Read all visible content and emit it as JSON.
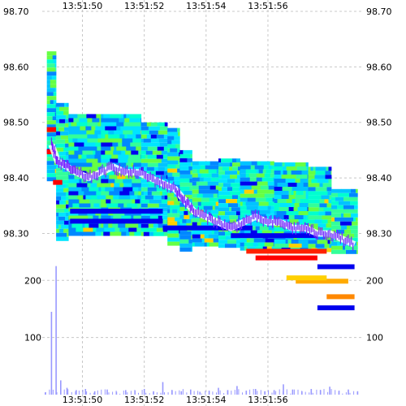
{
  "chart_data": {
    "type": "heatmap",
    "title": "",
    "xlabel": "",
    "ylabel": "",
    "grid": true,
    "x_ticks": [
      "13:51:50",
      "13:51:52",
      "13:51:54",
      "13:51:56"
    ],
    "x_tick_seconds": [
      50,
      52,
      54,
      56
    ],
    "x_range_seconds": [
      48.7,
      59.1
    ],
    "price_ticks": [
      "98.70",
      "98.60",
      "98.50",
      "98.40",
      "98.30"
    ],
    "price_tick_values": [
      98.7,
      98.6,
      98.5,
      98.4,
      98.3
    ],
    "price_range": [
      98.27,
      98.7
    ],
    "volume_ticks": [
      "200",
      "100"
    ],
    "volume_tick_values": [
      200,
      100
    ],
    "volume_range": [
      0,
      290
    ],
    "colors": {
      "grid": "#c8c8c8",
      "volume_bars": "#9999ff",
      "trade_line": "#ffffff",
      "trade_marks": "#7a22ff",
      "intensity_scale": [
        "#00e5ff",
        "#00ffd0",
        "#33ff99",
        "#66ff44",
        "#00c4ff",
        "#0088ff",
        "#0000ee",
        "#ffd000",
        "#ff8800",
        "#ff0000"
      ]
    },
    "book_bands": [
      {
        "start_s": 48.85,
        "end_s": 49.15,
        "top": 98.628,
        "bottom": 98.4
      },
      {
        "start_s": 49.15,
        "end_s": 49.55,
        "top": 98.535,
        "bottom": 98.29
      },
      {
        "start_s": 49.55,
        "end_s": 50.6,
        "top": 98.515,
        "bottom": 98.3
      },
      {
        "start_s": 50.6,
        "end_s": 51.9,
        "top": 98.515,
        "bottom": 98.3
      },
      {
        "start_s": 51.9,
        "end_s": 52.75,
        "top": 98.5,
        "bottom": 98.3
      },
      {
        "start_s": 52.75,
        "end_s": 53.15,
        "top": 98.49,
        "bottom": 98.28
      },
      {
        "start_s": 53.15,
        "end_s": 53.55,
        "top": 98.45,
        "bottom": 98.27
      },
      {
        "start_s": 53.55,
        "end_s": 54.4,
        "top": 98.43,
        "bottom": 98.28
      },
      {
        "start_s": 54.4,
        "end_s": 55.1,
        "top": 98.435,
        "bottom": 98.28
      },
      {
        "start_s": 55.1,
        "end_s": 56.2,
        "top": 98.43,
        "bottom": 98.27
      },
      {
        "start_s": 56.2,
        "end_s": 57.3,
        "top": 98.428,
        "bottom": 98.27
      },
      {
        "start_s": 57.3,
        "end_s": 58.05,
        "top": 98.42,
        "bottom": 98.27
      },
      {
        "start_s": 58.05,
        "end_s": 58.9,
        "top": 98.38,
        "bottom": 98.27
      }
    ],
    "heavy_levels": [
      {
        "start_s": 48.85,
        "end_s": 49.15,
        "price": 98.487,
        "color": "#ff0000"
      },
      {
        "start_s": 48.85,
        "end_s": 49.15,
        "price": 98.447,
        "color": "#ff0000"
      },
      {
        "start_s": 49.05,
        "end_s": 49.35,
        "price": 98.392,
        "color": "#ff0000"
      },
      {
        "start_s": 55.6,
        "end_s": 57.6,
        "price": 98.256,
        "color": "#ff0000"
      },
      {
        "start_s": 55.3,
        "end_s": 57.9,
        "price": 98.268,
        "color": "#ff2200"
      },
      {
        "start_s": 56.9,
        "end_s": 58.6,
        "price": 98.214,
        "color": "#ffaa00"
      },
      {
        "start_s": 56.6,
        "end_s": 57.9,
        "price": 98.22,
        "color": "#ffd000"
      },
      {
        "start_s": 57.9,
        "end_s": 58.8,
        "price": 98.186,
        "color": "#ff8800"
      },
      {
        "start_s": 49.6,
        "end_s": 52.6,
        "price": 98.34,
        "color": "#0000ee"
      },
      {
        "start_s": 49.6,
        "end_s": 52.6,
        "price": 98.322,
        "color": "#0000ee"
      },
      {
        "start_s": 52.6,
        "end_s": 55.5,
        "price": 98.31,
        "color": "#0000ee"
      },
      {
        "start_s": 54.8,
        "end_s": 57.6,
        "price": 98.296,
        "color": "#0000ee"
      },
      {
        "start_s": 57.6,
        "end_s": 58.8,
        "price": 98.24,
        "color": "#0000ee"
      },
      {
        "start_s": 57.6,
        "end_s": 58.8,
        "price": 98.166,
        "color": "#0000ee"
      }
    ],
    "trades": {
      "times_s": [
        49.0,
        49.2,
        49.5,
        49.8,
        50.2,
        50.6,
        51.0,
        51.4,
        51.8,
        52.2,
        52.6,
        53.0,
        53.3,
        53.6,
        54.0,
        54.4,
        54.8,
        55.2,
        55.6,
        56.0,
        56.4,
        56.8,
        57.2,
        57.6,
        58.0,
        58.4,
        58.8
      ],
      "prices": [
        98.46,
        98.43,
        98.42,
        98.41,
        98.4,
        98.41,
        98.42,
        98.41,
        98.41,
        98.4,
        98.39,
        98.38,
        98.36,
        98.34,
        98.33,
        98.32,
        98.31,
        98.32,
        98.33,
        98.32,
        98.32,
        98.31,
        98.31,
        98.3,
        98.3,
        98.29,
        98.28
      ]
    },
    "volume": {
      "times_s": [
        48.8,
        49.0,
        49.15,
        49.3,
        49.5,
        49.8,
        50.1,
        50.4,
        50.8,
        51.1,
        51.4,
        51.7,
        52.0,
        52.3,
        52.6,
        52.9,
        53.2,
        53.5,
        53.8,
        54.1,
        54.4,
        54.7,
        55.0,
        55.3,
        55.6,
        55.9,
        56.2,
        56.5,
        56.8,
        57.1,
        57.4,
        57.7,
        58.0,
        58.3,
        58.6,
        58.9
      ],
      "values": [
        4,
        145,
        225,
        25,
        12,
        8,
        10,
        6,
        9,
        5,
        8,
        7,
        10,
        6,
        22,
        8,
        6,
        9,
        5,
        7,
        12,
        8,
        15,
        7,
        10,
        6,
        8,
        18,
        9,
        6,
        10,
        8,
        14,
        7,
        9,
        6
      ]
    }
  }
}
